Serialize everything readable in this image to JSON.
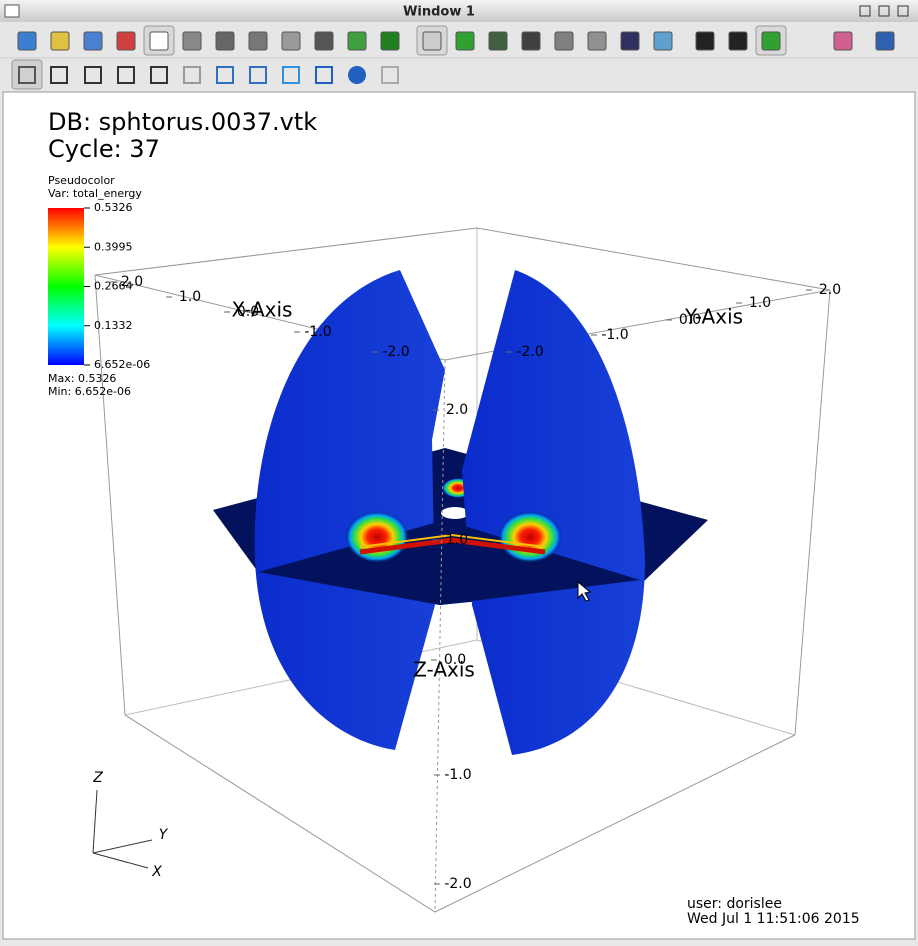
{
  "window": {
    "title": "Window 1"
  },
  "annotations": {
    "database": "DB: sphtorus.0037.vtk",
    "cycle": "Cycle: 37",
    "user": "user: dorislee",
    "date": "Wed Jul  1 11:51:06 2015"
  },
  "legend": {
    "plot": "Pseudocolor",
    "variable": "Var: total_energy",
    "labels": [
      "0.5326",
      "0.3995",
      "0.2664",
      "0.1332",
      "6.652e-06"
    ],
    "max": "Max: 0.5326",
    "min": "Min: 6.652e-06"
  },
  "axes": {
    "x_title": "X-Axis",
    "y_title": "Y-Axis",
    "z_title": "Z-Axis",
    "x_ticks": [
      "2.0",
      "1.0",
      "0.0",
      "-1.0",
      "-2.0"
    ],
    "y_ticks": [
      "-2.0",
      "-1.0",
      "0.0",
      "1.0",
      "2.0"
    ],
    "z_ticks": [
      "2.0",
      "1.0",
      "0.0",
      "-1.0",
      "-2.0"
    ]
  },
  "triad": {
    "z": "Z",
    "y": "Y",
    "x": "X"
  }
}
